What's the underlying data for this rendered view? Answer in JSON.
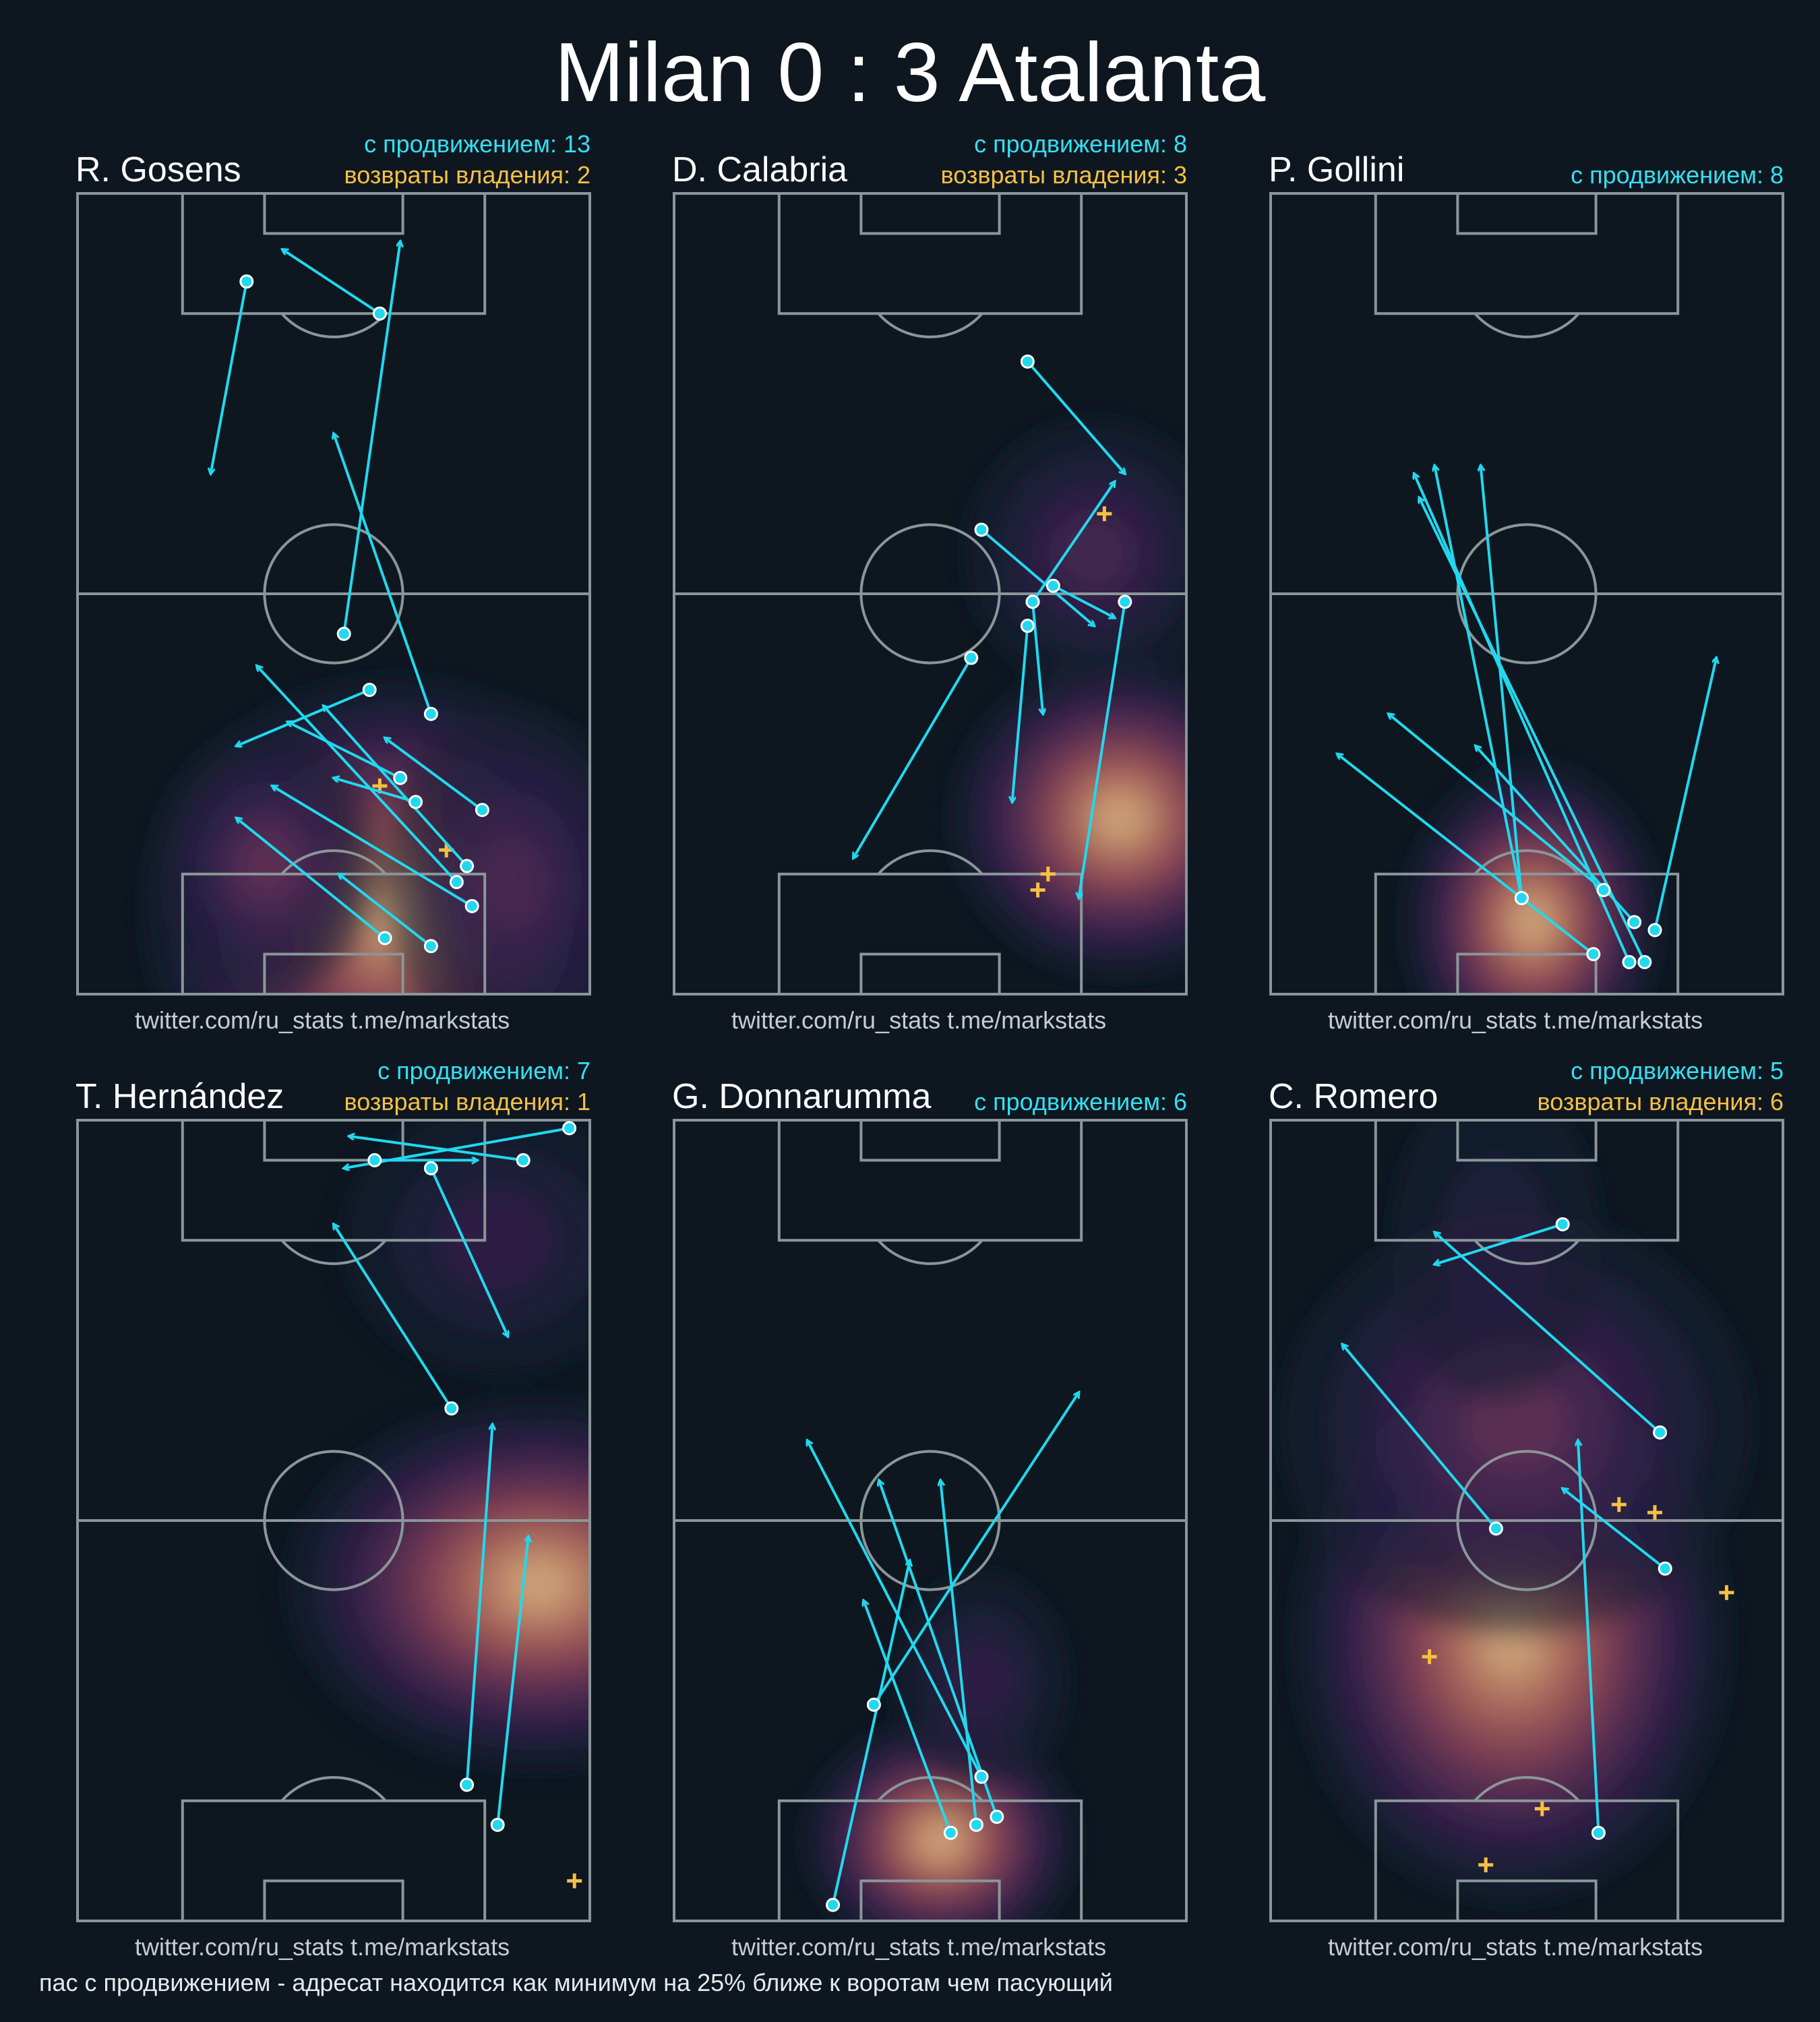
{
  "title": "Milan 0 : 3 Atalanta",
  "footnote": "пас с продвижением - адресат находится как минимум на 25% ближе к воротам чем пасующий",
  "credits": "twitter.com/ru_stats  t.me/markstats",
  "colors": {
    "background": "#0e1720",
    "pitch_lines": "#8a9699",
    "progressive_pass": "#22d8ee",
    "possession_regain": "#f5c043"
  },
  "chart_data": [
    {
      "type": "scatter",
      "player": "R. Gosens",
      "progressive_label": "с продвижением: 13",
      "recoveries_label": "возвраты владения: 2",
      "passes": [
        [
          45,
          52,
          94,
          63
        ],
        [
          38,
          57,
          31,
          31
        ],
        [
          27,
          63,
          34,
          41
        ],
        [
          24,
          66,
          27,
          50
        ],
        [
          7,
          60,
          22,
          31
        ],
        [
          6,
          69,
          15,
          51
        ],
        [
          11,
          77,
          26,
          38
        ],
        [
          14,
          74,
          41,
          35
        ],
        [
          16,
          76,
          36,
          48
        ],
        [
          23,
          79,
          32,
          60
        ],
        [
          35,
          69,
          70,
          50
        ],
        [
          85,
          59,
          93,
          40
        ],
        [
          89,
          33,
          65,
          26
        ]
      ],
      "recoveries": [
        [
          18,
          72
        ],
        [
          26,
          59
        ]
      ],
      "heat": [
        [
          10,
          62,
          1.0,
          18,
          30
        ],
        [
          16,
          37,
          0.45,
          10,
          13
        ],
        [
          14,
          85,
          0.35,
          13,
          15
        ]
      ]
    },
    {
      "type": "scatter",
      "player": "D. Calabria",
      "progressive_label": "с продвижением: 8",
      "recoveries_label": "возвраты владения: 3",
      "passes": [
        [
          49,
          70,
          64,
          86
        ],
        [
          79,
          69,
          65,
          88
        ],
        [
          42,
          58,
          17,
          35
        ],
        [
          46,
          69,
          24,
          66
        ],
        [
          49,
          70,
          35,
          72
        ],
        [
          58,
          60,
          46,
          82
        ],
        [
          49,
          88,
          12,
          79
        ],
        [
          51,
          74,
          47,
          86
        ]
      ],
      "recoveries": [
        [
          60,
          84
        ],
        [
          15,
          73
        ],
        [
          13,
          71
        ]
      ],
      "heat": [
        [
          22,
          87,
          1.0,
          12,
          20
        ],
        [
          55,
          82,
          0.35,
          10,
          15
        ]
      ]
    },
    {
      "type": "scatter",
      "player": "P. Gollini",
      "progressive_label": "с продвижением: 8",
      "recoveries_label": "",
      "passes": [
        [
          9,
          71,
          31,
          40
        ],
        [
          13,
          65,
          35,
          23
        ],
        [
          12,
          49,
          66,
          41
        ],
        [
          8,
          75,
          42,
          87
        ],
        [
          4,
          73,
          62,
          29
        ],
        [
          5,
          63,
          30,
          13
        ],
        [
          12,
          49,
          66,
          32
        ],
        [
          4,
          70,
          65,
          28
        ]
      ],
      "recoveries": [],
      "heat": [
        [
          9,
          51,
          1.0,
          12,
          15
        ]
      ]
    },
    {
      "type": "scatter",
      "player": "T. Hernández",
      "progressive_label": "с продвижением: 7",
      "recoveries_label": "возвраты владения: 1",
      "passes": [
        [
          12,
          82,
          48,
          88
        ],
        [
          17,
          76,
          62,
          81
        ],
        [
          64,
          73,
          87,
          50
        ],
        [
          94,
          69,
          73,
          84
        ],
        [
          95,
          87,
          98,
          53
        ],
        [
          95,
          58,
          95,
          78
        ],
        [
          99,
          96,
          94,
          52
        ]
      ],
      "recoveries": [
        [
          5,
          97
        ]
      ],
      "heat": [
        [
          42,
          90,
          1.0,
          14,
          30
        ],
        [
          85,
          82,
          0.3,
          10,
          18
        ]
      ]
    },
    {
      "type": "scatter",
      "player": "G. Donnarumma",
      "progressive_label": "с продвижением: 6",
      "recoveries_label": "",
      "passes": [
        [
          11,
          54,
          40,
          37
        ],
        [
          18,
          60,
          60,
          26
        ],
        [
          12,
          59,
          55,
          52
        ],
        [
          13,
          63,
          55,
          40
        ],
        [
          27,
          39,
          66,
          79
        ],
        [
          2,
          31,
          45,
          46
        ]
      ],
      "recoveries": [],
      "heat": [
        [
          10,
          52,
          1.0,
          9,
          16
        ],
        [
          30,
          60,
          0.25,
          8,
          10
        ]
      ]
    },
    {
      "type": "scatter",
      "player": "C. Romero",
      "progressive_label": "с продвижением: 5",
      "recoveries_label": "возвраты владения: 6",
      "passes": [
        [
          87,
          57,
          82,
          32
        ],
        [
          11,
          64,
          60,
          60
        ],
        [
          61,
          76,
          86,
          32
        ],
        [
          49,
          44,
          72,
          14
        ],
        [
          44,
          77,
          54,
          57
        ]
      ],
      "recoveries": [
        [
          52,
          68
        ],
        [
          51,
          75
        ],
        [
          41,
          89
        ],
        [
          33,
          31
        ],
        [
          14,
          53
        ],
        [
          7,
          42
        ]
      ],
      "heat": [
        [
          35,
          47,
          1.0,
          20,
          26
        ],
        [
          62,
          48,
          0.5,
          16,
          28
        ],
        [
          85,
          44,
          0.2,
          12,
          12
        ]
      ]
    }
  ],
  "chart_notes": "Pass coordinates [x1,y1,x2,y2] and points [x,y] on a 0–100 pitch scale; x = distance from own goal line toward opponent goal (upward), y = lateral position from left touchline. Heat entries [x,y,intensity,spread_x,spread_y] describe the density contours."
}
